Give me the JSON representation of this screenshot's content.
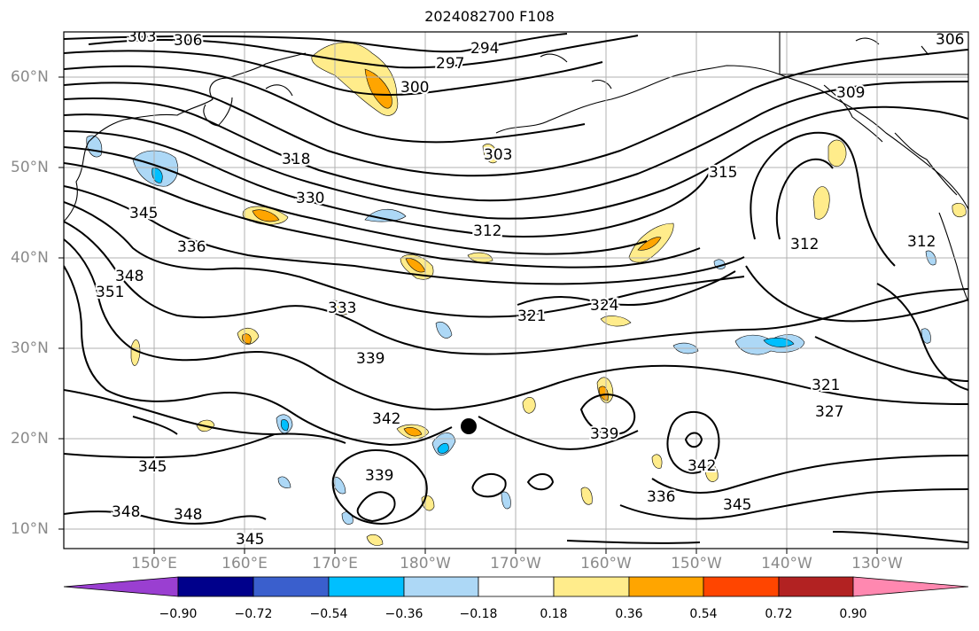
{
  "title": "2024082700 F108",
  "map": {
    "lat_labels": [
      "60°N",
      "50°N",
      "40°N",
      "30°N",
      "20°N",
      "10°N"
    ],
    "lon_labels": [
      "150°E",
      "160°E",
      "170°E",
      "180°W",
      "170°W",
      "160°W",
      "150°W",
      "140°W",
      "130°W"
    ],
    "contour_labels": [
      "303",
      "306",
      "294",
      "297",
      "300",
      "303",
      "306",
      "309",
      "318",
      "330",
      "345",
      "336",
      "348",
      "351",
      "312",
      "315",
      "312",
      "312",
      "321",
      "324",
      "333",
      "339",
      "342",
      "339",
      "339",
      "342",
      "336",
      "345",
      "345",
      "348",
      "348",
      "345",
      "321",
      "327"
    ],
    "marker": "storm-center-dot"
  },
  "colorbar": {
    "colors": [
      "#9a3fd1",
      "#00008b",
      "#3a5fcd",
      "#00bfff",
      "#add8f6",
      "#ffffff",
      "#ffec8b",
      "#ffa500",
      "#ff4500",
      "#b22222",
      "#ff88b0"
    ],
    "tick_labels": [
      "−0.90",
      "−0.72",
      "−0.54",
      "−0.36",
      "−0.18",
      "0.18",
      "0.36",
      "0.54",
      "0.72",
      "0.90"
    ]
  }
}
